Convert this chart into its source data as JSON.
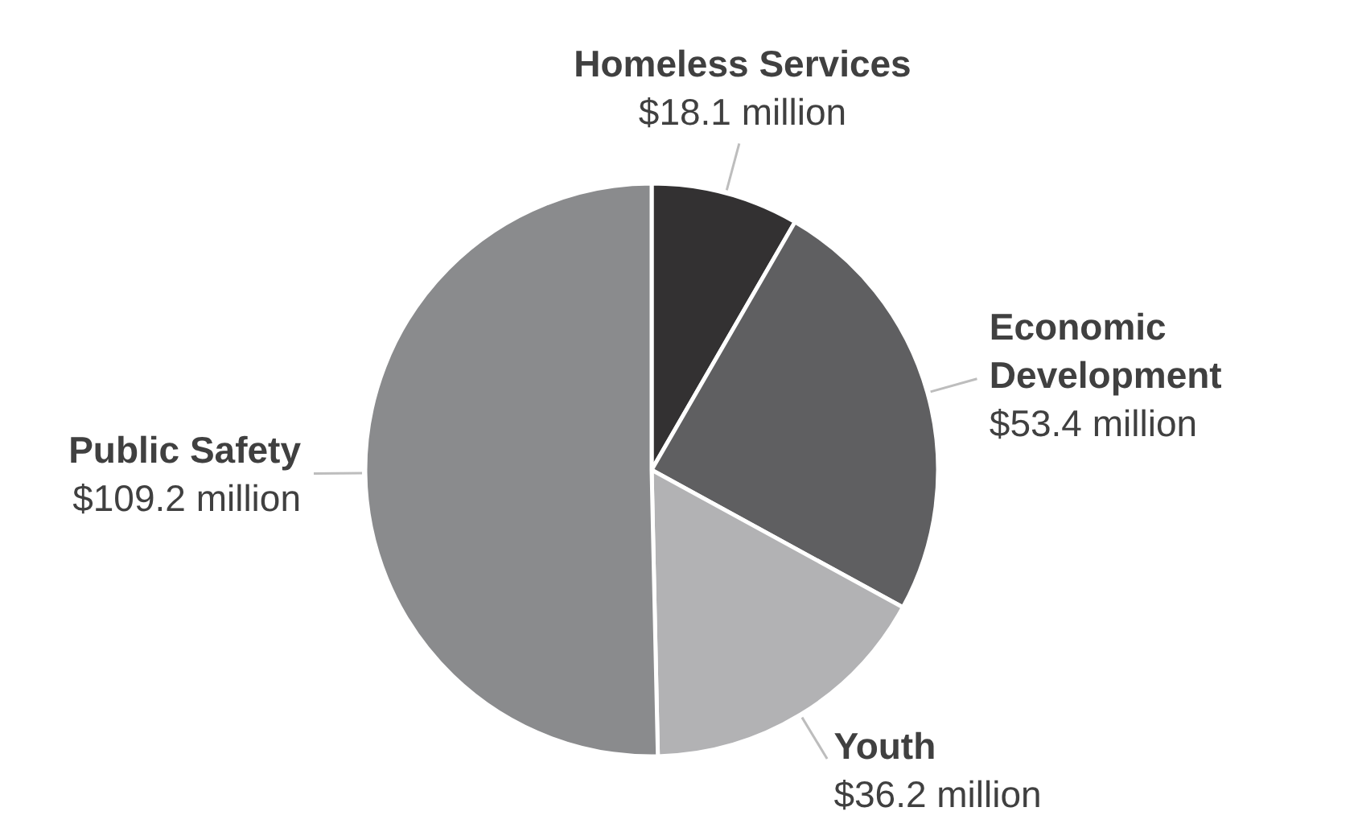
{
  "chart_data": {
    "type": "pie",
    "categories": [
      "Homeless Services",
      "Economic Development",
      "Youth",
      "Public Safety"
    ],
    "values": [
      18.1,
      53.4,
      36.2,
      109.2
    ],
    "value_labels": [
      "$18.1 million",
      "$53.4 million",
      "$36.2 million",
      "$109.2 million"
    ],
    "colors": [
      "#333132",
      "#5f5f61",
      "#b2b2b4",
      "#8a8b8d"
    ]
  }
}
